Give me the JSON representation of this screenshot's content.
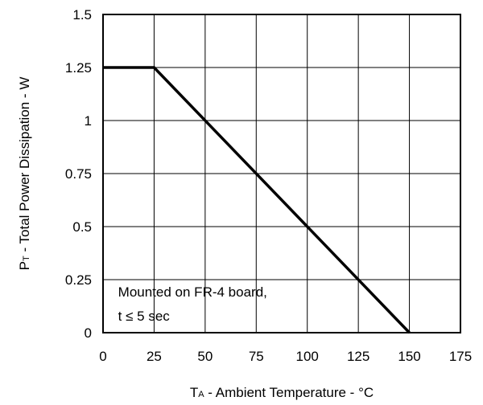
{
  "chart_data": {
    "type": "line",
    "xlabel_main": "T",
    "xlabel_sub": "A",
    "xlabel_rest": " - Ambient Temperature - °C",
    "ylabel_main": "P",
    "ylabel_sub": "T",
    "ylabel_rest": " - Total Power Dissipation - W",
    "xlim": [
      0,
      175
    ],
    "ylim": [
      0,
      1.5
    ],
    "x_ticks": [
      0,
      25,
      50,
      75,
      100,
      125,
      150,
      175
    ],
    "x_tick_labels": [
      "0",
      "25",
      "50",
      "75",
      "100",
      "125",
      "150",
      "175"
    ],
    "y_ticks": [
      0,
      0.25,
      0.5,
      0.75,
      1,
      1.25,
      1.5
    ],
    "y_tick_labels": [
      "0",
      "0.25",
      "0.5",
      "0.75",
      "1",
      "1.25",
      "1.5"
    ],
    "grid": true,
    "series": [
      {
        "x": [
          0,
          25,
          150
        ],
        "y": [
          1.25,
          1.25,
          0
        ],
        "color": "#000000"
      }
    ],
    "annotation": {
      "line1": "Mounted on FR-4 board,",
      "line2": "t ≤ 5 sec",
      "x": 5,
      "y": 0.2
    }
  }
}
